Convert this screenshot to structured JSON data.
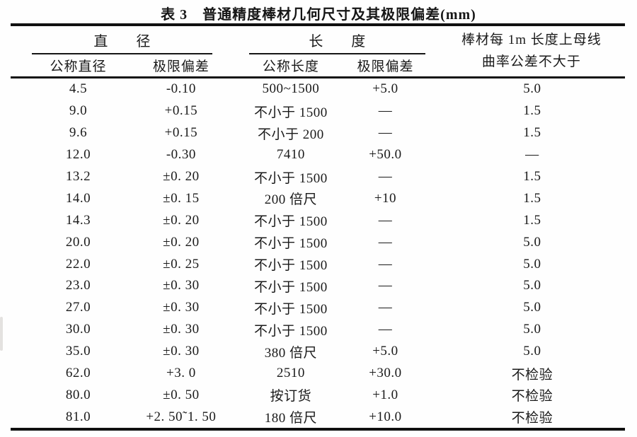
{
  "title": "表 3　普通精度棒材几何尺寸及其极限偏差(mm)",
  "table": {
    "column_groups": [
      {
        "label": "直　　径",
        "span": 2
      },
      {
        "label": "长　　度",
        "span": 2
      },
      {
        "label_line1": "棒材每 1m 长度上母线",
        "label_line2": "曲率公差不大于",
        "span": 1
      }
    ],
    "columns": [
      "公称直径",
      "极限偏差",
      "公称长度",
      "极限偏差"
    ],
    "rows": [
      [
        "4.5",
        "-0.10",
        "500~1500",
        "+5.0",
        "5.0"
      ],
      [
        "9.0",
        "+0.15",
        "不小于 1500",
        "—",
        "1.5"
      ],
      [
        "9.6",
        "+0.15",
        "不小于 200",
        "—",
        "1.5"
      ],
      [
        "12.0",
        "-0.30",
        "7410",
        "+50.0",
        "—"
      ],
      [
        "13.2",
        "±0. 20",
        "不小于 1500",
        "—",
        "1.5"
      ],
      [
        "14.0",
        "±0. 15",
        "200 倍尺",
        "+10",
        "1.5"
      ],
      [
        "14.3",
        "±0. 20",
        "不小于 1500",
        "—",
        "1.5"
      ],
      [
        "20.0",
        "±0. 20",
        "不小于 1500",
        "—",
        "5.0"
      ],
      [
        "22.0",
        "±0. 25",
        "不小于 1500",
        "—",
        "5.0"
      ],
      [
        "23.0",
        "±0. 30",
        "不小于 1500",
        "—",
        "5.0"
      ],
      [
        "27.0",
        "±0. 30",
        "不小于 1500",
        "—",
        "5.0"
      ],
      [
        "30.0",
        "±0. 30",
        "不小于 1500",
        "—",
        "5.0"
      ],
      [
        "35.0",
        "±0. 30",
        "380 倍尺",
        "+5.0",
        "5.0"
      ],
      [
        "62.0",
        "+3. 0",
        "2510",
        "+30.0",
        "不检验"
      ],
      [
        "80.0",
        "±0. 50",
        "按订货",
        "+1.0",
        "不检验"
      ],
      [
        "81.0",
        "+2. 50˜1. 50",
        "180 倍尺",
        "+10.0",
        "不检验"
      ]
    ]
  }
}
